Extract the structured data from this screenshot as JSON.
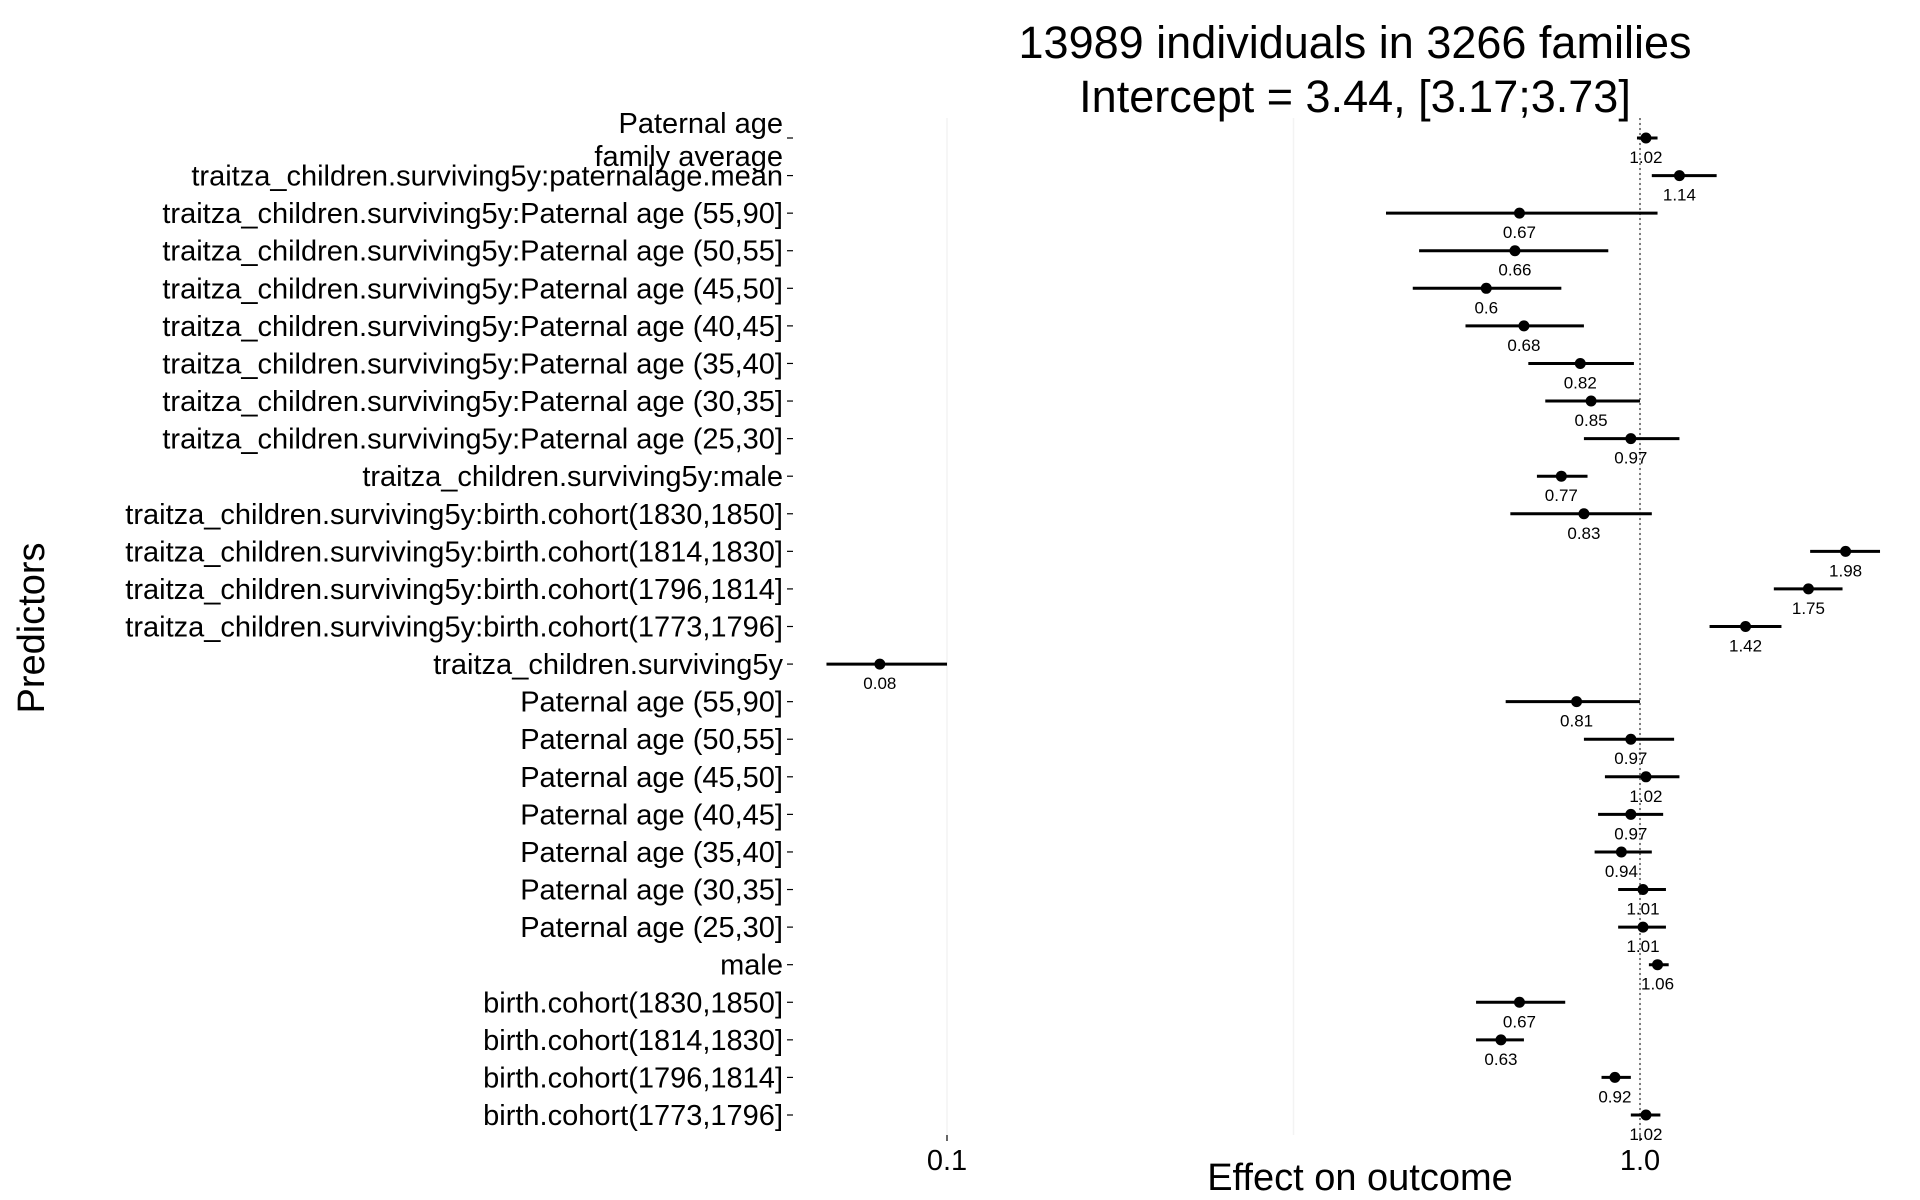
{
  "chart_data": {
    "type": "forest",
    "title_line1": "13989 individuals in 3266 families",
    "title_line2": "Intercept = 3.44, [3.17;3.73]",
    "xlabel": "Effect on outcome",
    "ylabel": "Predictors",
    "x_scale": "log",
    "xlim": [
      0.055,
      2.55
    ],
    "x_ticks": [
      {
        "value": 0.1,
        "label": "0.1"
      },
      {
        "value": 1.0,
        "label": "1.0"
      }
    ],
    "reference_line": 1.0,
    "grid": "faint vertical gridlines",
    "rows": [
      {
        "label": "Paternal age\nfamily average",
        "estimate": 1.02,
        "low": 0.99,
        "high": 1.06,
        "value_label": "1.02"
      },
      {
        "label": "traitza_children.surviving5y:paternalage.mean",
        "estimate": 1.14,
        "low": 1.04,
        "high": 1.29,
        "value_label": "1.14"
      },
      {
        "label": "traitza_children.surviving5y:Paternal age (55,90]",
        "estimate": 0.67,
        "low": 0.43,
        "high": 1.06,
        "value_label": "0.67"
      },
      {
        "label": "traitza_children.surviving5y:Paternal age (50,55]",
        "estimate": 0.66,
        "low": 0.48,
        "high": 0.9,
        "value_label": "0.66"
      },
      {
        "label": "traitza_children.surviving5y:Paternal age (45,50]",
        "estimate": 0.6,
        "low": 0.47,
        "high": 0.77,
        "value_label": "0.6"
      },
      {
        "label": "traitza_children.surviving5y:Paternal age (40,45]",
        "estimate": 0.68,
        "low": 0.56,
        "high": 0.83,
        "value_label": "0.68"
      },
      {
        "label": "traitza_children.surviving5y:Paternal age (35,40]",
        "estimate": 0.82,
        "low": 0.69,
        "high": 0.98,
        "value_label": "0.82"
      },
      {
        "label": "traitza_children.surviving5y:Paternal age (30,35]",
        "estimate": 0.85,
        "low": 0.73,
        "high": 1.0,
        "value_label": "0.85"
      },
      {
        "label": "traitza_children.surviving5y:Paternal age (25,30]",
        "estimate": 0.97,
        "low": 0.83,
        "high": 1.14,
        "value_label": "0.97"
      },
      {
        "label": "traitza_children.surviving5y:male",
        "estimate": 0.77,
        "low": 0.71,
        "high": 0.84,
        "value_label": "0.77"
      },
      {
        "label": "traitza_children.surviving5y:birth.cohort(1830,1850]",
        "estimate": 0.83,
        "low": 0.65,
        "high": 1.04,
        "value_label": "0.83"
      },
      {
        "label": "traitza_children.surviving5y:birth.cohort(1814,1830]",
        "estimate": 1.98,
        "low": 1.76,
        "high": 2.22,
        "value_label": "1.98"
      },
      {
        "label": "traitza_children.surviving5y:birth.cohort(1796,1814]",
        "estimate": 1.75,
        "low": 1.56,
        "high": 1.96,
        "value_label": "1.75"
      },
      {
        "label": "traitza_children.surviving5y:birth.cohort(1773,1796]",
        "estimate": 1.42,
        "low": 1.26,
        "high": 1.6,
        "value_label": "1.42"
      },
      {
        "label": "traitza_children.surviving5y",
        "estimate": 0.08,
        "low": 0.067,
        "high": 0.1,
        "value_label": "0.08"
      },
      {
        "label": "Paternal age (55,90]",
        "estimate": 0.81,
        "low": 0.64,
        "high": 1.0,
        "value_label": "0.81"
      },
      {
        "label": "Paternal age (50,55]",
        "estimate": 0.97,
        "low": 0.83,
        "high": 1.12,
        "value_label": "0.97"
      },
      {
        "label": "Paternal age (45,50]",
        "estimate": 1.02,
        "low": 0.89,
        "high": 1.14,
        "value_label": "1.02"
      },
      {
        "label": "Paternal age (40,45]",
        "estimate": 0.97,
        "low": 0.87,
        "high": 1.08,
        "value_label": "0.97"
      },
      {
        "label": "Paternal age (35,40]",
        "estimate": 0.94,
        "low": 0.86,
        "high": 1.04,
        "value_label": "0.94"
      },
      {
        "label": "Paternal age (30,35]",
        "estimate": 1.01,
        "low": 0.93,
        "high": 1.09,
        "value_label": "1.01"
      },
      {
        "label": "Paternal age (25,30]",
        "estimate": 1.01,
        "low": 0.93,
        "high": 1.09,
        "value_label": "1.01"
      },
      {
        "label": "male",
        "estimate": 1.06,
        "low": 1.03,
        "high": 1.1,
        "value_label": "1.06"
      },
      {
        "label": "birth.cohort(1830,1850]",
        "estimate": 0.67,
        "low": 0.58,
        "high": 0.78,
        "value_label": "0.67"
      },
      {
        "label": "birth.cohort(1814,1830]",
        "estimate": 0.63,
        "low": 0.58,
        "high": 0.68,
        "value_label": "0.63"
      },
      {
        "label": "birth.cohort(1796,1814]",
        "estimate": 0.92,
        "low": 0.88,
        "high": 0.97,
        "value_label": "0.92"
      },
      {
        "label": "birth.cohort(1773,1796]",
        "estimate": 1.02,
        "low": 0.97,
        "high": 1.07,
        "value_label": "1.02"
      }
    ]
  }
}
